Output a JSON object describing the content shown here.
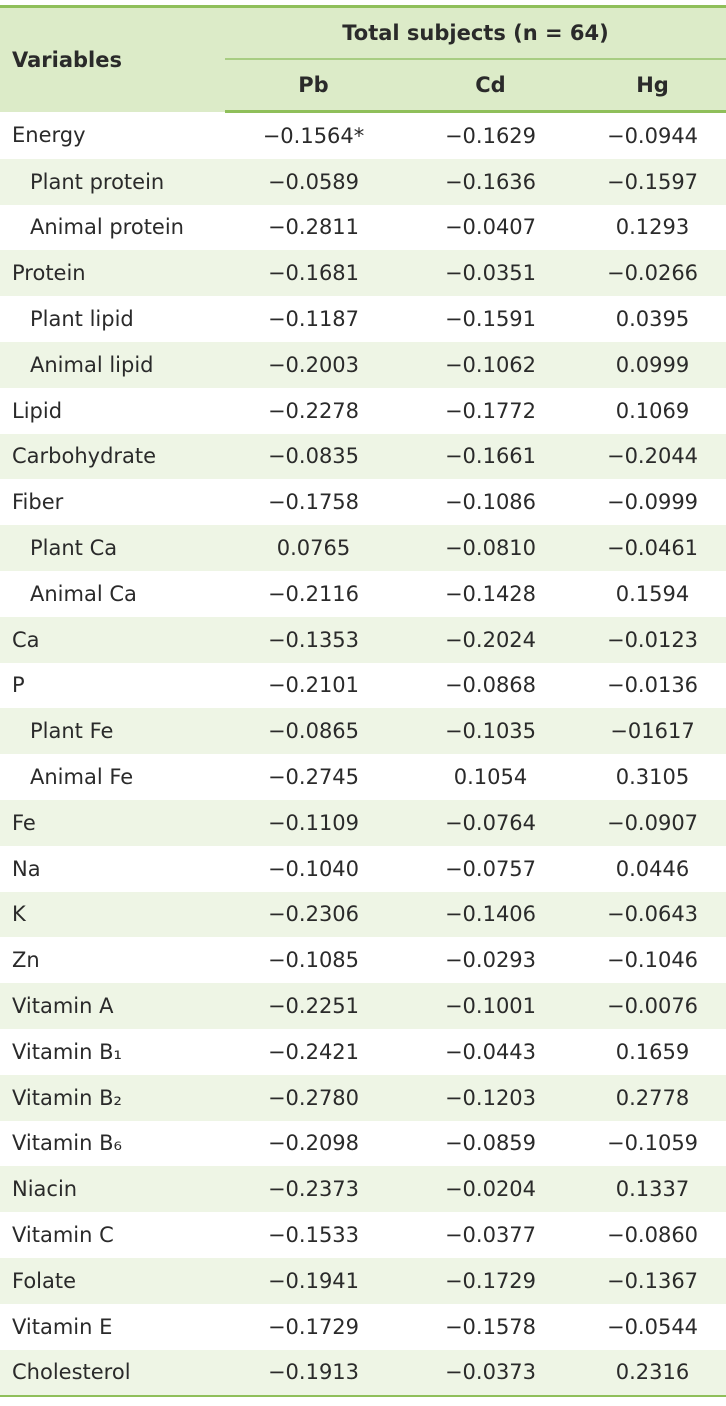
{
  "table": {
    "header": {
      "variables": "Variables",
      "group": "Total subjects (n = 64)",
      "columns": [
        "Pb",
        "Cd",
        "Hg"
      ]
    },
    "rows": [
      {
        "label": "Energy",
        "values": [
          "−0.1564*",
          "−0.1629",
          "−0.0944"
        ]
      },
      {
        "label": "Plant protein",
        "indent": true,
        "values": [
          "−0.0589",
          "−0.1636",
          "−0.1597"
        ]
      },
      {
        "label": "Animal protein",
        "indent": true,
        "values": [
          "−0.2811",
          "−0.0407",
          "0.1293"
        ]
      },
      {
        "label": "Protein",
        "values": [
          "−0.1681",
          "−0.0351",
          "−0.0266"
        ]
      },
      {
        "label": "Plant lipid",
        "indent": true,
        "values": [
          "−0.1187",
          "−0.1591",
          "0.0395"
        ]
      },
      {
        "label": "Animal lipid",
        "indent": true,
        "values": [
          "−0.2003",
          "−0.1062",
          "0.0999"
        ]
      },
      {
        "label": "Lipid",
        "values": [
          "−0.2278",
          "−0.1772",
          "0.1069"
        ]
      },
      {
        "label": "Carbohydrate",
        "values": [
          "−0.0835",
          "−0.1661",
          "−0.2044"
        ]
      },
      {
        "label": "Fiber",
        "values": [
          "−0.1758",
          "−0.1086",
          "−0.0999"
        ]
      },
      {
        "label": "Plant Ca",
        "indent": true,
        "values": [
          "0.0765",
          "−0.0810",
          "−0.0461"
        ]
      },
      {
        "label": "Animal Ca",
        "indent": true,
        "values": [
          "−0.2116",
          "−0.1428",
          "0.1594"
        ]
      },
      {
        "label": "Ca",
        "values": [
          "−0.1353",
          "−0.2024",
          "−0.0123"
        ]
      },
      {
        "label": "P",
        "values": [
          "−0.2101",
          "−0.0868",
          "−0.0136"
        ]
      },
      {
        "label": "Plant Fe",
        "indent": true,
        "values": [
          "−0.0865",
          "−0.1035",
          "−01617"
        ]
      },
      {
        "label": "Animal Fe",
        "indent": true,
        "values": [
          "−0.2745",
          "0.1054",
          "0.3105"
        ]
      },
      {
        "label": "Fe",
        "values": [
          "−0.1109",
          "−0.0764",
          "−0.0907"
        ]
      },
      {
        "label": "Na",
        "values": [
          "−0.1040",
          "−0.0757",
          "0.0446"
        ]
      },
      {
        "label": "K",
        "values": [
          "−0.2306",
          "−0.1406",
          "−0.0643"
        ]
      },
      {
        "label": "Zn",
        "values": [
          "−0.1085",
          "−0.0293",
          "−0.1046"
        ]
      },
      {
        "label": "Vitamin A",
        "values": [
          "−0.2251",
          "−0.1001",
          "−0.0076"
        ]
      },
      {
        "label": "Vitamin B₁",
        "values": [
          "−0.2421",
          "−0.0443",
          "0.1659"
        ]
      },
      {
        "label": "Vitamin B₂",
        "values": [
          "−0.2780",
          "−0.1203",
          "0.2778"
        ]
      },
      {
        "label": "Vitamin B₆",
        "values": [
          "−0.2098",
          "−0.0859",
          "−0.1059"
        ]
      },
      {
        "label": "Niacin",
        "values": [
          "−0.2373",
          "−0.0204",
          "0.1337"
        ]
      },
      {
        "label": "Vitamin C",
        "values": [
          "−0.1533",
          "−0.0377",
          "−0.0860"
        ]
      },
      {
        "label": "Folate",
        "values": [
          "−0.1941",
          "−0.1729",
          "−0.1367"
        ]
      },
      {
        "label": "Vitamin E",
        "values": [
          "−0.1729",
          "−0.1578",
          "−0.0544"
        ]
      },
      {
        "label": "Cholesterol",
        "values": [
          "−0.1913",
          "−0.0373",
          "0.2316"
        ]
      }
    ]
  }
}
